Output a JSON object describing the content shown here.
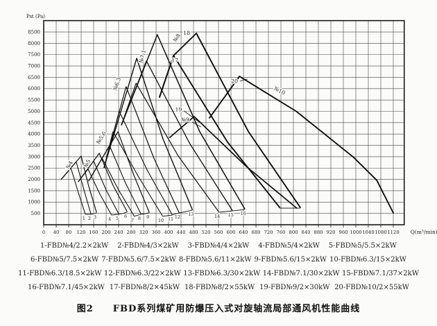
{
  "figure": {
    "caption": "图2　　FBD系列煤矿用防爆压入式对旋轴流局部通风机性能曲线"
  },
  "legend": {
    "rows": [
      [
        "1-FBD№4/2.2×2kW",
        "2-FBD№4/3×2kW",
        "3-FBD№4/4×2kW",
        "4-FBD№5/4×2kW",
        "5-FBD№5/5.5×2kW"
      ],
      [
        "6-FBD№5/7.5×2kW",
        "7-FBD№5.6/7.5×2kW",
        "8-FBD№5.6/11×2kW",
        "9-FBD№5.6/15×2kW",
        "10-FBD№6.3/15×2kW"
      ],
      [
        "11-FBD№6.3/18.5×2kW",
        "12-FBD№6.3/22×2kW",
        "13-FBD№6.3/30×2kW",
        "14-FBD№7.1/30×2kW",
        "15-FBD№7.1/37×2kW"
      ],
      [
        "16-FBD№7.1/45×2kW",
        "17-FBD№8/2×45kW",
        "18-FBD№8/2×55kW",
        "19-FBD№9/2×30kW",
        "20-FBD№10/2×55kW"
      ]
    ]
  },
  "chart_data": {
    "type": "line",
    "title": "FBD series mine explosion-proof counter-rotating axial local fan performance curves",
    "xlabel": "Q(m³/min)",
    "ylabel": "Pst (Pa)",
    "xlim": [
      0,
      1155
    ],
    "ylim": [
      0,
      9000
    ],
    "grid": true,
    "x_ticks": [
      0,
      40,
      80,
      120,
      160,
      200,
      240,
      280,
      320,
      360,
      400,
      440,
      480,
      520,
      560,
      600,
      640,
      680,
      720,
      760,
      800,
      840,
      880,
      920,
      960,
      1000,
      1040,
      1080,
      1120
    ],
    "y_ticks": [
      500,
      1000,
      1500,
      2000,
      2500,
      3000,
      3500,
      4000,
      4500,
      5000,
      5500,
      6000,
      6500,
      7000,
      7500,
      8000,
      8500
    ],
    "colors": {
      "line": "#101010",
      "grid": "#454545",
      "frame": "#1a1a1a",
      "text": "#1d1d1d"
    },
    "series": [
      {
        "number": 1,
        "name": "FBD№4/2.2×2kW",
        "w": 1.1,
        "end_label": true,
        "points": [
          [
            56,
            2000
          ],
          [
            87,
            2500
          ],
          [
            111,
            1410
          ],
          [
            133,
            490
          ]
        ]
      },
      {
        "number": 2,
        "name": "FBD№4/3×2kW",
        "w": 1.1,
        "end_label": true,
        "points": [
          [
            56,
            2000
          ],
          [
            104,
            2780
          ],
          [
            129,
            1530
          ],
          [
            151,
            490
          ]
        ]
      },
      {
        "number": 3,
        "name": "FBD№4/4×2kW",
        "w": 1.2,
        "end_label": true,
        "points": [
          [
            56,
            2000
          ],
          [
            120,
            3030
          ],
          [
            144,
            1710
          ],
          [
            169,
            550
          ]
        ]
      },
      {
        "number": 4,
        "name": "FBD№5/4×2kW",
        "w": 1.1,
        "end_label": true,
        "points": [
          [
            111,
            1900
          ],
          [
            142,
            2450
          ],
          [
            180,
            1350
          ],
          [
            216,
            460
          ]
        ]
      },
      {
        "number": 5,
        "name": "FBD№5/5.5×2kW",
        "w": 1.1,
        "end_label": true,
        "points": [
          [
            111,
            1900
          ],
          [
            160,
            2810
          ],
          [
            200,
            1530
          ],
          [
            240,
            490
          ]
        ]
      },
      {
        "number": 6,
        "name": "FBD№5/7.5×2kW",
        "w": 1.2,
        "end_label": true,
        "points": [
          [
            111,
            1900
          ],
          [
            178,
            3150
          ],
          [
            222,
            1740
          ],
          [
            267,
            580
          ]
        ]
      },
      {
        "number": 7,
        "name": "FBD№5.6/7.5×2kW",
        "w": 1.1,
        "end_label": true,
        "points": [
          [
            144,
            1930
          ],
          [
            187,
            2940
          ],
          [
            240,
            1530
          ],
          [
            289,
            400
          ]
        ]
      },
      {
        "number": 8,
        "name": "FBD№5.6/11×2kW",
        "w": 1.1,
        "end_label": true,
        "points": [
          [
            144,
            1930
          ],
          [
            211,
            3490
          ],
          [
            262,
            1840
          ],
          [
            311,
            490
          ]
        ]
      },
      {
        "number": 9,
        "name": "FBD№5.6/15×2kW",
        "w": 1.2,
        "end_label": true,
        "points": [
          [
            144,
            1930
          ],
          [
            238,
            4100
          ],
          [
            289,
            2170
          ],
          [
            338,
            550
          ]
        ]
      },
      {
        "number": 10,
        "name": "FBD№6.3/15×2kW",
        "w": 1.1,
        "end_label": true,
        "points": [
          [
            193,
            2510
          ],
          [
            222,
            4100
          ],
          [
            304,
            2110
          ],
          [
            380,
            400
          ]
        ]
      },
      {
        "number": 11,
        "name": "FBD№6.3/18.5×2kW",
        "w": 1.1,
        "end_label": true,
        "points": [
          [
            193,
            2510
          ],
          [
            242,
            5000
          ],
          [
            331,
            2420
          ],
          [
            411,
            460
          ]
        ]
      },
      {
        "number": 12,
        "name": "FBD№6.3/22×2kW",
        "w": 1.2,
        "end_label": true,
        "points": [
          [
            193,
            2510
          ],
          [
            264,
            6090
          ],
          [
            353,
            2940
          ],
          [
            433,
            550
          ]
        ]
      },
      {
        "number": 13,
        "name": "FBD№6.3/30×2kW",
        "w": 1.4,
        "end_label": true,
        "points": [
          [
            193,
            2510
          ],
          [
            298,
            7340
          ],
          [
            382,
            3790
          ],
          [
            476,
            670
          ]
        ]
      },
      {
        "number": 14,
        "name": "FBD№7.1/30×2kW",
        "w": 1.2,
        "end_label": true,
        "points": [
          [
            249,
            4400
          ],
          [
            296,
            6240
          ],
          [
            431,
            3030
          ],
          [
            560,
            580
          ]
        ]
      },
      {
        "number": 15,
        "name": "FBD№7.1/37×2kW",
        "w": 1.3,
        "end_label": true,
        "points": [
          [
            249,
            4400
          ],
          [
            329,
            7220
          ],
          [
            469,
            3550
          ],
          [
            604,
            640
          ]
        ]
      },
      {
        "number": 16,
        "name": "FBD№7.1/45×2kW",
        "w": 1.5,
        "end_label": true,
        "points": [
          [
            249,
            4400
          ],
          [
            364,
            8380
          ],
          [
            500,
            4100
          ],
          [
            644,
            700
          ]
        ]
      },
      {
        "number": 17,
        "name": "FBD№8/2×45kW",
        "w": 1.9,
        "end_label": false,
        "points": [
          [
            371,
            5630
          ],
          [
            416,
            7460
          ],
          [
            589,
            3640
          ],
          [
            756,
            760
          ]
        ]
      },
      {
        "number": 18,
        "name": "FBD№8/2×55kW",
        "w": 1.9,
        "end_label": false,
        "points": [
          [
            371,
            5630
          ],
          [
            416,
            7460
          ],
          [
            489,
            8440
          ],
          [
            656,
            4100
          ],
          [
            822,
            760
          ]
        ]
      },
      {
        "number": 19,
        "name": "FBD№9/2×30kW",
        "w": 1.7,
        "end_label": false,
        "points": [
          [
            404,
            3850
          ],
          [
            482,
            4770
          ],
          [
            649,
            2570
          ],
          [
            811,
            730
          ]
        ]
      },
      {
        "number": 20,
        "name": "FBD№10/2×55kW",
        "w": 1.9,
        "end_label": false,
        "points": [
          [
            531,
            4710
          ],
          [
            627,
            6540
          ],
          [
            809,
            5000
          ],
          [
            993,
            2970
          ],
          [
            1067,
            1960
          ],
          [
            1120,
            520
          ]
        ]
      }
    ],
    "brackets": [
      [
        1,
        2,
        3
      ],
      [
        4,
        5,
        6
      ],
      [
        7,
        8,
        9
      ],
      [
        10,
        11,
        12,
        13
      ],
      [
        14,
        15,
        16
      ],
      [
        17,
        18
      ]
    ],
    "cluster_labels": [
      {
        "text": "№4",
        "q": 87,
        "p": 2600,
        "rot": -62
      },
      {
        "text": "№5",
        "q": 144,
        "p": 2660,
        "rot": -62
      },
      {
        "text": "№5.6",
        "q": 189,
        "p": 3790,
        "rot": -58
      },
      {
        "text": "№6.3",
        "q": 240,
        "p": 6180,
        "rot": -72
      },
      {
        "text": "№7.1",
        "q": 322,
        "p": 7400,
        "rot": -75
      },
      {
        "text": "№8",
        "q": 431,
        "p": 8200,
        "rot": -58
      },
      {
        "text": "№9",
        "q": 453,
        "p": 4560,
        "rot": 0
      },
      {
        "text": "№10",
        "q": 753,
        "p": 5840,
        "rot": 27
      }
    ],
    "curve_labels": [
      {
        "text": "17",
        "q": 420,
        "p": 7250
      },
      {
        "text": "18",
        "q": 458,
        "p": 8460
      },
      {
        "text": "19",
        "q": 432,
        "p": 5080
      },
      {
        "text": "20",
        "q": 611,
        "p": 6330
      }
    ],
    "leaders": [
      [
        [
          449,
          5020
        ],
        [
          498,
          4530
        ]
      ],
      [
        [
          476,
          4530
        ],
        [
          504,
          4310
        ]
      ],
      [
        [
          629,
          6330
        ],
        [
          653,
          6430
        ]
      ]
    ]
  }
}
